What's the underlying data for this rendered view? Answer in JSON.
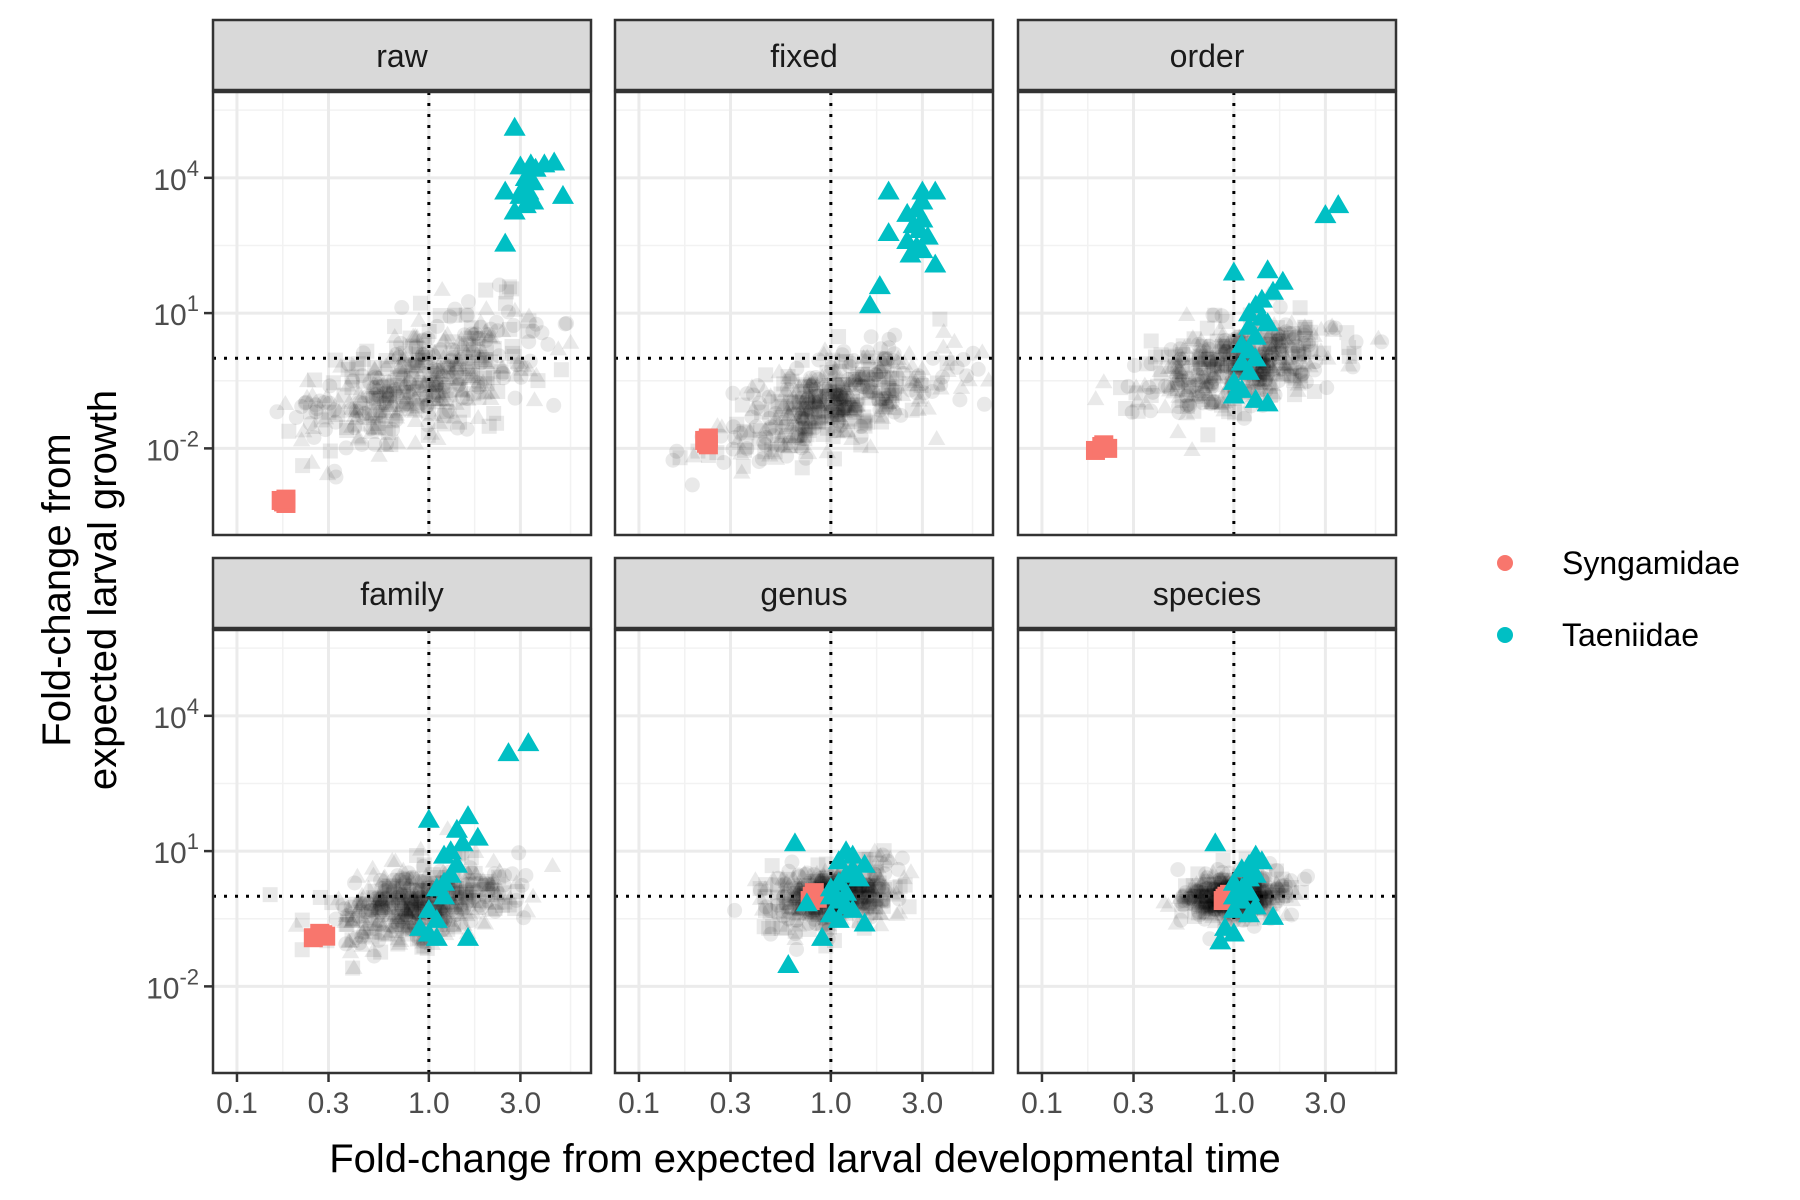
{
  "chart_data": {
    "type": "scatter",
    "facets": [
      {
        "label": "raw",
        "grey_cloud": {
          "cx": 0.9,
          "cy": 0.3,
          "sx": 0.3,
          "sy": 0.75,
          "rho": 0.6,
          "n": 460,
          "seed": 11
        },
        "highlights": [
          {
            "group": "Syngamidae",
            "points": [
              [
                0.17,
                0.0007
              ],
              [
                0.18,
                0.0006
              ],
              [
                0.175,
                0.00065
              ],
              [
                0.18,
                0.00075
              ]
            ]
          },
          {
            "group": "Taeniidae",
            "points": [
              [
                2.8,
                130000
              ],
              [
                3.4,
                20000
              ],
              [
                4.0,
                20000
              ],
              [
                4.5,
                22000
              ],
              [
                3.0,
                18000
              ],
              [
                3.6,
                16000
              ],
              [
                3.2,
                10000
              ],
              [
                3.5,
                8000
              ],
              [
                3.1,
                6000
              ],
              [
                3.3,
                5000
              ],
              [
                3.0,
                4000
              ],
              [
                2.5,
                5000
              ],
              [
                3.5,
                3000
              ],
              [
                3.2,
                2500
              ],
              [
                5.0,
                4000
              ],
              [
                2.8,
                1800
              ],
              [
                2.5,
                350
              ]
            ]
          }
        ]
      },
      {
        "label": "fixed",
        "grey_cloud": {
          "cx": 1.0,
          "cy": 0.1,
          "sx": 0.28,
          "sy": 0.55,
          "rho": 0.55,
          "n": 460,
          "seed": 23
        },
        "highlights": [
          {
            "group": "Syngamidae",
            "points": [
              [
                0.22,
                0.015
              ],
              [
                0.23,
                0.012
              ],
              [
                0.225,
                0.013
              ],
              [
                0.23,
                0.017
              ]
            ]
          },
          {
            "group": "Taeniidae",
            "points": [
              [
                2.0,
                5000
              ],
              [
                3.0,
                5000
              ],
              [
                3.5,
                5000
              ],
              [
                3.0,
                3000
              ],
              [
                2.8,
                2000
              ],
              [
                2.5,
                1600
              ],
              [
                3.0,
                1200
              ],
              [
                2.7,
                900
              ],
              [
                2.9,
                700
              ],
              [
                2.0,
                600
              ],
              [
                3.2,
                500
              ],
              [
                2.5,
                400
              ],
              [
                2.8,
                300
              ],
              [
                3.0,
                250
              ],
              [
                2.6,
                200
              ],
              [
                3.5,
                120
              ],
              [
                1.8,
                40
              ],
              [
                1.6,
                15
              ]
            ]
          }
        ]
      },
      {
        "label": "order",
        "grey_cloud": {
          "cx": 1.1,
          "cy": 0.7,
          "sx": 0.26,
          "sy": 0.55,
          "rho": 0.45,
          "n": 460,
          "seed": 37
        },
        "highlights": [
          {
            "group": "Syngamidae",
            "points": [
              [
                0.19,
                0.009
              ],
              [
                0.21,
                0.012
              ],
              [
                0.22,
                0.01
              ],
              [
                0.205,
                0.011
              ]
            ]
          },
          {
            "group": "Taeniidae",
            "points": [
              [
                3.5,
                2500
              ],
              [
                3.0,
                1500
              ],
              [
                1.0,
                80
              ],
              [
                1.5,
                90
              ],
              [
                1.8,
                50
              ],
              [
                1.6,
                30
              ],
              [
                1.4,
                20
              ],
              [
                1.3,
                15
              ],
              [
                1.2,
                10
              ],
              [
                1.4,
                8
              ],
              [
                1.5,
                6
              ],
              [
                1.2,
                5
              ],
              [
                1.3,
                3
              ],
              [
                1.1,
                2
              ],
              [
                1.2,
                1.5
              ],
              [
                1.3,
                1
              ],
              [
                1.1,
                0.8
              ],
              [
                1.2,
                0.5
              ],
              [
                1.0,
                0.3
              ],
              [
                1.1,
                0.2
              ],
              [
                1.0,
                0.15
              ],
              [
                1.3,
                0.12
              ],
              [
                1.5,
                0.1
              ]
            ]
          }
        ]
      },
      {
        "label": "family",
        "grey_cloud": {
          "cx": 0.95,
          "cy": 0.7,
          "sx": 0.24,
          "sy": 0.45,
          "rho": 0.4,
          "n": 460,
          "seed": 41
        },
        "highlights": [
          {
            "group": "Syngamidae",
            "points": [
              [
                0.25,
                0.12
              ],
              [
                0.27,
                0.15
              ],
              [
                0.29,
                0.13
              ],
              [
                0.28,
                0.14
              ]
            ]
          },
          {
            "group": "Taeniidae",
            "points": [
              [
                3.3,
                2500
              ],
              [
                2.6,
                1500
              ],
              [
                1.0,
                50
              ],
              [
                1.6,
                60
              ],
              [
                1.4,
                30
              ],
              [
                1.8,
                20
              ],
              [
                1.5,
                15
              ],
              [
                1.3,
                10
              ],
              [
                1.2,
                8
              ],
              [
                1.4,
                5
              ],
              [
                1.3,
                3
              ],
              [
                1.2,
                2
              ],
              [
                1.1,
                1.5
              ],
              [
                1.2,
                1
              ],
              [
                1.0,
                0.5
              ],
              [
                1.1,
                0.3
              ],
              [
                0.9,
                0.2
              ],
              [
                1.0,
                0.15
              ],
              [
                1.1,
                0.12
              ],
              [
                1.6,
                0.12
              ]
            ]
          }
        ]
      },
      {
        "label": "genus",
        "grey_cloud": {
          "cx": 1.0,
          "cy": 1.0,
          "sx": 0.17,
          "sy": 0.33,
          "rho": 0.25,
          "n": 460,
          "seed": 53
        },
        "highlights": [
          {
            "group": "Syngamidae",
            "points": [
              [
                0.8,
                1.0
              ],
              [
                0.85,
                0.9
              ],
              [
                0.82,
                1.2
              ],
              [
                0.78,
                0.8
              ]
            ]
          },
          {
            "group": "Taeniidae",
            "points": [
              [
                0.65,
                15
              ],
              [
                1.2,
                10
              ],
              [
                1.3,
                8
              ],
              [
                1.1,
                6
              ],
              [
                1.5,
                5
              ],
              [
                1.3,
                4
              ],
              [
                1.2,
                3
              ],
              [
                1.4,
                2.5
              ],
              [
                1.1,
                2
              ],
              [
                1.0,
                1.5
              ],
              [
                1.2,
                1.2
              ],
              [
                1.0,
                1
              ],
              [
                1.1,
                0.8
              ],
              [
                1.2,
                0.6
              ],
              [
                0.75,
                0.7
              ],
              [
                1.3,
                0.5
              ],
              [
                1.0,
                0.4
              ],
              [
                1.1,
                0.3
              ],
              [
                1.5,
                0.25
              ],
              [
                0.9,
                0.12
              ],
              [
                0.6,
                0.03
              ]
            ]
          }
        ]
      },
      {
        "label": "species",
        "grey_cloud": {
          "cx": 1.0,
          "cy": 1.0,
          "sx": 0.13,
          "sy": 0.25,
          "rho": 0.2,
          "n": 460,
          "seed": 67
        },
        "highlights": [
          {
            "group": "Syngamidae",
            "points": [
              [
                0.9,
                0.9
              ],
              [
                0.95,
                1.1
              ],
              [
                0.88,
                0.8
              ],
              [
                0.92,
                1.0
              ]
            ]
          },
          {
            "group": "Taeniidae",
            "points": [
              [
                0.8,
                15
              ],
              [
                1.3,
                8
              ],
              [
                1.4,
                6
              ],
              [
                1.2,
                5
              ],
              [
                1.1,
                4
              ],
              [
                1.3,
                3
              ],
              [
                1.2,
                2.5
              ],
              [
                1.0,
                2
              ],
              [
                1.1,
                1.5
              ],
              [
                1.2,
                1.2
              ],
              [
                1.0,
                1
              ],
              [
                1.1,
                0.8
              ],
              [
                1.3,
                0.6
              ],
              [
                1.0,
                0.5
              ],
              [
                1.2,
                0.4
              ],
              [
                1.6,
                0.35
              ],
              [
                0.9,
                0.2
              ],
              [
                1.0,
                0.15
              ],
              [
                0.85,
                0.1
              ]
            ]
          }
        ]
      }
    ],
    "x_scale": "log10",
    "y_scale": "log10",
    "xlim": [
      0.075,
      7.0
    ],
    "ylim": [
      0.00012,
      800000
    ],
    "x_ticks": [
      0.1,
      0.3,
      1.0,
      3.0
    ],
    "x_tick_labels": [
      "0.1",
      "0.3",
      "1.0",
      "3.0"
    ],
    "y_ticks": [
      0.01,
      10,
      10000
    ],
    "y_tick_labels": [
      {
        "base": "10",
        "exp": "-2"
      },
      {
        "base": "10",
        "exp": "1"
      },
      {
        "base": "10",
        "exp": "4"
      }
    ],
    "reference_lines": {
      "x": 1.0,
      "y": 1.0
    },
    "xlabel": "Fold-change from expected larval developmental time",
    "ylabel": [
      "Fold-change from",
      "expected larval growth"
    ],
    "legend": {
      "placement": "right",
      "entries": [
        {
          "name": "Syngamidae",
          "color": "#F8766D"
        },
        {
          "name": "Taeniidae",
          "color": "#00BFC4"
        }
      ]
    },
    "highlight_shapes": {
      "Syngamidae": "square",
      "Taeniidae": "triangle"
    },
    "grey_color": "#000000",
    "grid": true
  }
}
